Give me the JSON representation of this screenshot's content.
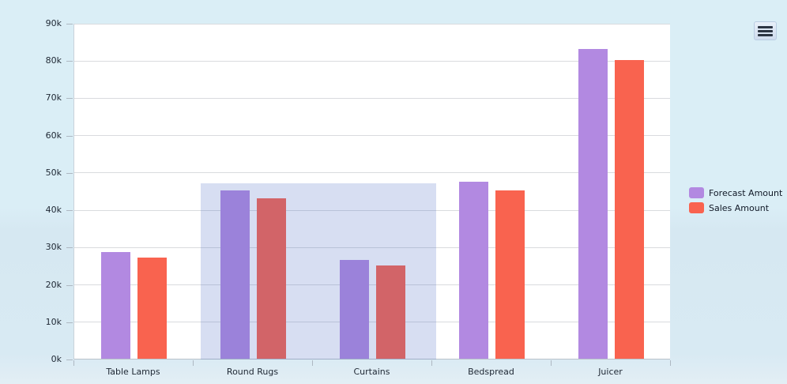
{
  "menu": {
    "tooltip": "menu"
  },
  "legend": {
    "items": [
      {
        "label": "Forecast Amount",
        "color": "#b289e1"
      },
      {
        "label": "Sales Amount",
        "color": "#f9634f"
      }
    ]
  },
  "chart_data": {
    "type": "bar",
    "title": "",
    "xlabel": "",
    "ylabel": "",
    "categories": [
      "Table Lamps",
      "Round Rugs",
      "Curtains",
      "Bedspread",
      "Juicer"
    ],
    "series": [
      {
        "name": "Forecast Amount",
        "color": "#b289e1",
        "values": [
          28500,
          45000,
          26500,
          47500,
          83000
        ]
      },
      {
        "name": "Sales Amount",
        "color": "#f9634f",
        "values": [
          27000,
          43000,
          25000,
          45000,
          80000
        ]
      }
    ],
    "ylim": [
      0,
      90000
    ],
    "ytick_step": 10000,
    "ytick_labels": [
      "0k",
      "10k",
      "20k",
      "30k",
      "40k",
      "50k",
      "60k",
      "70k",
      "80k",
      "90k"
    ],
    "grid": true,
    "legend_position": "right",
    "highlight_region": {
      "categories": [
        "Round Rugs",
        "Curtains"
      ],
      "y_min": 0,
      "y_max": 47200,
      "color": "rgba(75,105,195,0.22)"
    }
  }
}
